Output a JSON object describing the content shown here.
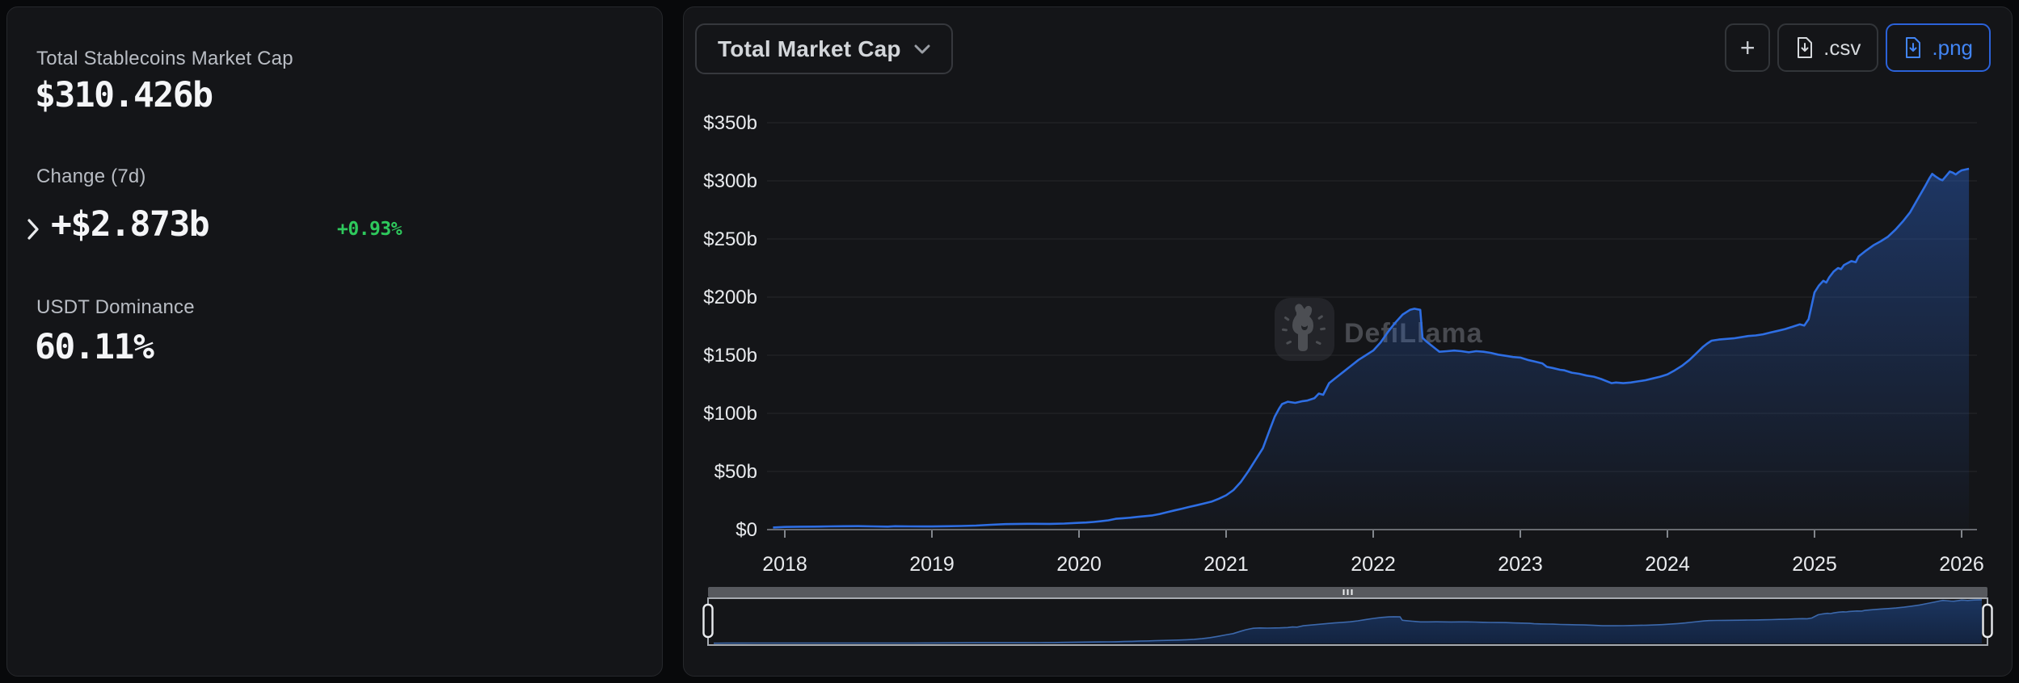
{
  "left_panel": {
    "stats": [
      {
        "label": "Total Stablecoins Market Cap",
        "value": "$310.426b"
      },
      {
        "label": "Change (7d)",
        "value": "+$2.873b",
        "badge": "+0.93%"
      },
      {
        "label": "USDT Dominance",
        "value": "60.11%"
      }
    ]
  },
  "toolbar": {
    "metric_selector_label": "Total Market Cap",
    "add_button_label": "+",
    "csv_button_label": ".csv",
    "png_button_label": ".png"
  },
  "watermark_text": "DefiLlama",
  "colors": {
    "accent_blue": "#2e6ee3",
    "area_fill_top": "rgba(46,110,227,0.42)",
    "area_fill_bottom": "rgba(46,110,227,0.02)",
    "positive_green": "#2ec85c",
    "png_button_blue": "#4285f4",
    "axis_line": "#83878d",
    "gridline": "rgba(255,255,255,0.055)",
    "mini_fill": "#1b355f",
    "mini_line": "#3c68ab",
    "brush_bar": "#57595e",
    "brush_border": "#a6aab0",
    "handle_stroke": "#e9ebee"
  },
  "chart_data": {
    "type": "area",
    "title": "Total Market Cap",
    "ylabel": "",
    "xlabel": "",
    "ylim": [
      0,
      350
    ],
    "xlim": [
      2017.9,
      2026.1
    ],
    "grid": true,
    "legend_position": "none",
    "y_ticks": [
      {
        "v": 0,
        "label": "$0"
      },
      {
        "v": 50,
        "label": "$50b"
      },
      {
        "v": 100,
        "label": "$100b"
      },
      {
        "v": 150,
        "label": "$150b"
      },
      {
        "v": 200,
        "label": "$200b"
      },
      {
        "v": 250,
        "label": "$250b"
      },
      {
        "v": 300,
        "label": "$300b"
      },
      {
        "v": 350,
        "label": "$350b"
      }
    ],
    "x_ticks": [
      {
        "v": 2018,
        "label": "2018"
      },
      {
        "v": 2019,
        "label": "2019"
      },
      {
        "v": 2020,
        "label": "2020"
      },
      {
        "v": 2021,
        "label": "2021"
      },
      {
        "v": 2022,
        "label": "2022"
      },
      {
        "v": 2023,
        "label": "2023"
      },
      {
        "v": 2024,
        "label": "2024"
      },
      {
        "v": 2025,
        "label": "2025"
      },
      {
        "v": 2026,
        "label": "2026"
      }
    ],
    "series": [
      {
        "name": "Total Stablecoins Market Cap",
        "unit": "$b",
        "points": [
          [
            2017.92,
            1.8
          ],
          [
            2018.0,
            2.3
          ],
          [
            2018.1,
            2.5
          ],
          [
            2018.2,
            2.6
          ],
          [
            2018.3,
            2.8
          ],
          [
            2018.4,
            2.9
          ],
          [
            2018.5,
            3.0
          ],
          [
            2018.6,
            2.8
          ],
          [
            2018.7,
            2.6
          ],
          [
            2018.75,
            2.9
          ],
          [
            2018.85,
            2.8
          ],
          [
            2019.0,
            2.7
          ],
          [
            2019.1,
            2.9
          ],
          [
            2019.2,
            3.1
          ],
          [
            2019.3,
            3.5
          ],
          [
            2019.4,
            4.2
          ],
          [
            2019.5,
            4.7
          ],
          [
            2019.6,
            4.9
          ],
          [
            2019.7,
            5.0
          ],
          [
            2019.8,
            4.9
          ],
          [
            2019.9,
            5.2
          ],
          [
            2020.0,
            5.8
          ],
          [
            2020.05,
            6.1
          ],
          [
            2020.1,
            6.6
          ],
          [
            2020.15,
            7.2
          ],
          [
            2020.2,
            8.0
          ],
          [
            2020.25,
            9.3
          ],
          [
            2020.3,
            9.8
          ],
          [
            2020.35,
            10.3
          ],
          [
            2020.4,
            11.0
          ],
          [
            2020.45,
            11.6
          ],
          [
            2020.5,
            12.2
          ],
          [
            2020.55,
            13.5
          ],
          [
            2020.6,
            15.0
          ],
          [
            2020.65,
            16.5
          ],
          [
            2020.7,
            18.0
          ],
          [
            2020.75,
            19.5
          ],
          [
            2020.8,
            21.0
          ],
          [
            2020.85,
            22.5
          ],
          [
            2020.9,
            24.0
          ],
          [
            2020.95,
            26.5
          ],
          [
            2021.0,
            29.5
          ],
          [
            2021.05,
            34.0
          ],
          [
            2021.1,
            41.0
          ],
          [
            2021.15,
            50.0
          ],
          [
            2021.2,
            60.0
          ],
          [
            2021.25,
            70.0
          ],
          [
            2021.3,
            87.0
          ],
          [
            2021.33,
            97.0
          ],
          [
            2021.36,
            104.0
          ],
          [
            2021.38,
            108.0
          ],
          [
            2021.42,
            110.0
          ],
          [
            2021.47,
            109.0
          ],
          [
            2021.52,
            110.5
          ],
          [
            2021.55,
            111.0
          ],
          [
            2021.6,
            113.0
          ],
          [
            2021.63,
            117.0
          ],
          [
            2021.66,
            116.0
          ],
          [
            2021.7,
            126.0
          ],
          [
            2021.75,
            131.0
          ],
          [
            2021.8,
            136.0
          ],
          [
            2021.85,
            141.0
          ],
          [
            2021.9,
            146.0
          ],
          [
            2021.95,
            150.0
          ],
          [
            2022.0,
            154.0
          ],
          [
            2022.05,
            161.0
          ],
          [
            2022.1,
            170.0
          ],
          [
            2022.15,
            178.0
          ],
          [
            2022.2,
            185.0
          ],
          [
            2022.25,
            189.0
          ],
          [
            2022.28,
            190.0
          ],
          [
            2022.32,
            189.0
          ],
          [
            2022.335,
            165.0
          ],
          [
            2022.36,
            162.0
          ],
          [
            2022.4,
            158.0
          ],
          [
            2022.42,
            156.0
          ],
          [
            2022.45,
            153.0
          ],
          [
            2022.5,
            153.5
          ],
          [
            2022.55,
            154.0
          ],
          [
            2022.6,
            153.5
          ],
          [
            2022.65,
            152.5
          ],
          [
            2022.7,
            153.5
          ],
          [
            2022.75,
            153.0
          ],
          [
            2022.8,
            152.0
          ],
          [
            2022.85,
            150.5
          ],
          [
            2022.9,
            149.5
          ],
          [
            2022.95,
            148.5
          ],
          [
            2023.0,
            148.0
          ],
          [
            2023.05,
            146.0
          ],
          [
            2023.1,
            144.5
          ],
          [
            2023.15,
            143.0
          ],
          [
            2023.18,
            140.0
          ],
          [
            2023.22,
            139.0
          ],
          [
            2023.27,
            137.5
          ],
          [
            2023.3,
            137.0
          ],
          [
            2023.35,
            135.0
          ],
          [
            2023.4,
            134.0
          ],
          [
            2023.45,
            132.5
          ],
          [
            2023.5,
            131.5
          ],
          [
            2023.55,
            129.5
          ],
          [
            2023.62,
            126.0
          ],
          [
            2023.65,
            126.5
          ],
          [
            2023.7,
            126.0
          ],
          [
            2023.75,
            126.5
          ],
          [
            2023.8,
            127.5
          ],
          [
            2023.85,
            128.5
          ],
          [
            2023.9,
            130.0
          ],
          [
            2023.95,
            131.5
          ],
          [
            2024.0,
            133.5
          ],
          [
            2024.05,
            137.0
          ],
          [
            2024.1,
            141.0
          ],
          [
            2024.15,
            146.0
          ],
          [
            2024.2,
            152.0
          ],
          [
            2024.24,
            157.0
          ],
          [
            2024.27,
            160.0
          ],
          [
            2024.3,
            162.5
          ],
          [
            2024.35,
            163.5
          ],
          [
            2024.4,
            164.0
          ],
          [
            2024.45,
            164.5
          ],
          [
            2024.5,
            165.5
          ],
          [
            2024.55,
            166.5
          ],
          [
            2024.6,
            167.0
          ],
          [
            2024.65,
            168.0
          ],
          [
            2024.7,
            169.5
          ],
          [
            2024.75,
            171.0
          ],
          [
            2024.8,
            172.5
          ],
          [
            2024.85,
            174.5
          ],
          [
            2024.9,
            176.5
          ],
          [
            2024.93,
            175.5
          ],
          [
            2024.96,
            181.0
          ],
          [
            2025.0,
            204.0
          ],
          [
            2025.03,
            210.0
          ],
          [
            2025.06,
            214.0
          ],
          [
            2025.08,
            212.5
          ],
          [
            2025.1,
            217.0
          ],
          [
            2025.13,
            222.0
          ],
          [
            2025.16,
            225.0
          ],
          [
            2025.18,
            224.0
          ],
          [
            2025.2,
            227.5
          ],
          [
            2025.25,
            231.0
          ],
          [
            2025.28,
            230.0
          ],
          [
            2025.3,
            235.0
          ],
          [
            2025.35,
            240.0
          ],
          [
            2025.4,
            244.5
          ],
          [
            2025.45,
            248.0
          ],
          [
            2025.5,
            252.0
          ],
          [
            2025.55,
            258.0
          ],
          [
            2025.6,
            265.0
          ],
          [
            2025.65,
            273.0
          ],
          [
            2025.7,
            284.0
          ],
          [
            2025.75,
            295.0
          ],
          [
            2025.78,
            302.0
          ],
          [
            2025.8,
            306.0
          ],
          [
            2025.82,
            304.0
          ],
          [
            2025.85,
            301.5
          ],
          [
            2025.87,
            300.5
          ],
          [
            2025.9,
            305.0
          ],
          [
            2025.92,
            308.0
          ],
          [
            2025.94,
            307.0
          ],
          [
            2025.96,
            305.5
          ],
          [
            2025.98,
            307.5
          ],
          [
            2026.0,
            309.0
          ],
          [
            2026.05,
            310.4
          ]
        ]
      }
    ]
  }
}
